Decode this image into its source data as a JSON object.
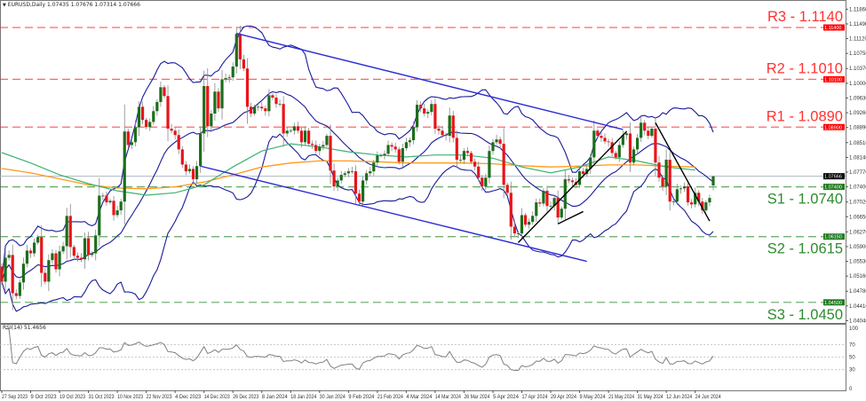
{
  "header": {
    "symbol_label": "EURUSD,Daily",
    "ohlc": "1.07435 1.07676 1.07314 1.07666"
  },
  "rsi_header": "RSI(14) 51.4656",
  "colors": {
    "bull": "#1b6e1b",
    "bear": "#e8141a",
    "bollinger": "#1a1a9a",
    "ma_fast": "#3cb371",
    "ma_slow": "#ff9a1a",
    "channel": "#2b2bd6",
    "trendline": "#000000",
    "resistance": "#ff3333",
    "support": "#2e8b2e",
    "current_price": "#b0b8c0",
    "rsi_line": "#808080"
  },
  "chart_data": [
    {
      "type": "candlestick",
      "symbol": "EURUSD",
      "timeframe": "Daily",
      "ylim": [
        1.0404,
        1.1186
      ],
      "y_ticks": [
        "1.11860",
        "1.11490",
        "1.11120",
        "1.10750",
        "1.10370",
        "1.10000",
        "1.09630",
        "1.09260",
        "1.08890",
        "1.08510",
        "1.08140",
        "1.07770",
        "1.07400",
        "1.07020",
        "1.06650",
        "1.06270",
        "1.05900",
        "1.05530",
        "1.05160",
        "1.04780",
        "1.04410",
        "1.04040"
      ],
      "x_ticks": [
        "27 Sep 2023",
        "9 Oct 2023",
        "19 Oct 2023",
        "31 Oct 2023",
        "10 Nov 2023",
        "22 Nov 2023",
        "4 Dec 2023",
        "14 Dec 2023",
        "26 Dec 2023",
        "8 Jan 2024",
        "18 Jan 2024",
        "30 Jan 2024",
        "9 Feb 2024",
        "21 Feb 2024",
        "4 Mar 2024",
        "14 Mar 2024",
        "26 Mar 2024",
        "5 Apr 2024",
        "17 Apr 2024",
        "29 Apr 2024",
        "9 May 2024",
        "21 May 2024",
        "31 May 2024",
        "12 Jun 2024",
        "24 Jun 2024"
      ],
      "x_tick_every_bars": 8,
      "last_bar": {
        "open": 1.07435,
        "high": 1.07676,
        "low": 1.07314,
        "close": 1.07666
      },
      "closes": [
        1.0502,
        1.0562,
        1.0569,
        1.0473,
        1.0466,
        1.05,
        1.0547,
        1.058,
        1.0573,
        1.06,
        1.0614,
        1.0524,
        1.0502,
        1.0556,
        1.0573,
        1.0533,
        1.0578,
        1.0591,
        1.0667,
        1.0589,
        1.0567,
        1.0562,
        1.0558,
        1.0611,
        1.0569,
        1.0573,
        1.0618,
        1.0718,
        1.0718,
        1.0701,
        1.0705,
        1.0669,
        1.0681,
        1.0703,
        1.0879,
        1.0845,
        1.0852,
        1.089,
        1.0941,
        1.0908,
        1.089,
        1.0903,
        1.093,
        1.0953,
        1.099,
        1.0968,
        1.0886,
        1.0881,
        1.087,
        1.0834,
        1.0796,
        1.0779,
        1.0785,
        1.0759,
        1.0792,
        1.0874,
        1.0993,
        1.0892,
        1.0924,
        1.0979,
        1.0937,
        1.101,
        1.1013,
        1.1015,
        1.1042,
        1.1124,
        1.106,
        1.1037,
        1.0941,
        1.0924,
        1.0941,
        1.0941,
        1.0937,
        1.093,
        1.097,
        1.0964,
        1.0948,
        1.0948,
        1.0874,
        1.0881,
        1.0881,
        1.0892,
        1.0881,
        1.0852,
        1.0881,
        1.0848,
        1.0845,
        1.083,
        1.0841,
        1.0845,
        1.0868,
        1.0781,
        1.0741,
        1.0756,
        1.077,
        1.0774,
        1.0779,
        1.0779,
        1.0723,
        1.0703,
        1.0756,
        1.0774,
        1.0779,
        1.0801,
        1.0819,
        1.0819,
        1.0823,
        1.0845,
        1.0841,
        1.0834,
        1.0803,
        1.0837,
        1.0852,
        1.0857,
        1.089,
        1.0946,
        1.0937,
        1.0924,
        1.0928,
        1.0948,
        1.0886,
        1.0881,
        1.087,
        1.0868,
        1.0919,
        1.0863,
        1.0808,
        1.0808,
        1.083,
        1.0825,
        1.0803,
        1.0791,
        1.0763,
        1.0741,
        1.0763,
        1.083,
        1.0852,
        1.0859,
        1.0848,
        1.0745,
        1.0725,
        1.064,
        1.0623,
        1.0623,
        1.0669,
        1.0645,
        1.0652,
        1.0667,
        1.0701,
        1.0698,
        1.073,
        1.0692,
        1.0692,
        1.0712,
        1.0663,
        1.0685,
        1.0759,
        1.0756,
        1.0752,
        1.0745,
        1.0779,
        1.0772,
        1.0785,
        1.0814,
        1.0881,
        1.0868,
        1.0863,
        1.0854,
        1.0852,
        1.0825,
        1.0814,
        1.0845,
        1.087,
        1.0874,
        1.0801,
        1.0834,
        1.0863,
        1.0901,
        1.0881,
        1.0868,
        1.0886,
        1.0801,
        1.0763,
        1.0741,
        1.0808,
        1.0703,
        1.0703,
        1.0734,
        1.0736,
        1.0741,
        1.0701,
        1.0696,
        1.0725,
        1.0703,
        1.0681,
        1.0701,
        1.0712,
        1.07666
      ],
      "first_open": 1.054,
      "bollinger": {
        "period": 20,
        "deviations": 2
      },
      "ma_fast_every_8_bars": [
        1.0826,
        1.08,
        1.077,
        1.0748,
        1.073,
        1.0719,
        1.0725,
        1.0745,
        1.079,
        1.083,
        1.0848,
        1.084,
        1.0828,
        1.082,
        1.0815,
        1.082,
        1.082,
        1.0812,
        1.079,
        1.0775,
        1.079,
        1.0815,
        1.0805,
        1.079,
        1.0782
      ],
      "ma_slow_every_8_bars": [
        1.0786,
        1.0775,
        1.076,
        1.0745,
        1.0737,
        1.0735,
        1.074,
        1.0752,
        1.077,
        1.079,
        1.08,
        1.0805,
        1.0805,
        1.0803,
        1.08,
        1.08,
        1.08,
        1.0798,
        1.0793,
        1.079,
        1.0792,
        1.0795,
        1.0795,
        1.0792,
        1.079
      ],
      "current_price": {
        "value": 1.07666,
        "tag": "1.07666"
      },
      "levels": [
        {
          "label": "R3 - 1.1140",
          "value": 1.114,
          "tag": "1.11400",
          "kind": "resistance"
        },
        {
          "label": "R2 - 1.1010",
          "value": 1.101,
          "tag": "1.10100",
          "kind": "resistance"
        },
        {
          "label": "R1 - 1.0890",
          "value": 1.089,
          "tag": "1.08900",
          "kind": "resistance"
        },
        {
          "label": "S1 - 1.0740",
          "value": 1.074,
          "tag": "1.07400",
          "kind": "support"
        },
        {
          "label": "S2 - 1.0615",
          "value": 1.0615,
          "tag": "1.06150",
          "kind": "support"
        },
        {
          "label": "S3 - 1.0450",
          "value": 1.045,
          "tag": "1.04500",
          "kind": "support"
        }
      ],
      "trendlines": [
        {
          "kind": "channel",
          "from": {
            "bar": 65,
            "price": 1.1125
          },
          "to": {
            "bar": 172,
            "price": 1.0884
          }
        },
        {
          "kind": "channel",
          "from": {
            "bar": 55,
            "price": 1.0792
          },
          "to": {
            "bar": 162,
            "price": 1.0553
          }
        },
        {
          "kind": "trendline",
          "from": {
            "bar": 143,
            "price": 1.06
          },
          "to": {
            "bar": 173,
            "price": 1.0879
          }
        },
        {
          "kind": "trendline",
          "from": {
            "bar": 154,
            "price": 1.0647
          },
          "to": {
            "bar": 161,
            "price": 1.0678
          }
        },
        {
          "kind": "trendline",
          "from": {
            "bar": 181,
            "price": 1.0901
          },
          "to": {
            "bar": 196,
            "price": 1.0654
          }
        }
      ]
    },
    {
      "type": "line",
      "indicator": "RSI(14)",
      "value_label": "51.4656",
      "ylim": [
        0,
        100
      ],
      "y_ticks": [
        "100",
        "70",
        "50",
        "30",
        "0"
      ],
      "levels": [
        70,
        50,
        30
      ]
    }
  ]
}
